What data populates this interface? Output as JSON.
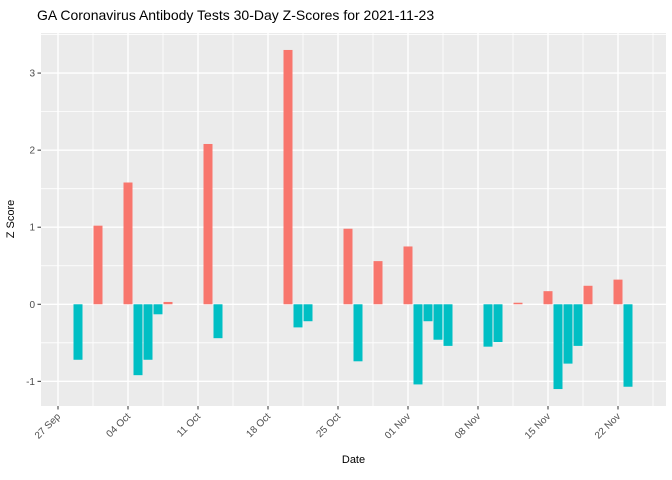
{
  "title": "GA Coronavirus Antibody Tests 30-Day Z-Scores for 2021-11-23",
  "chart_data": {
    "type": "bar",
    "title": "GA Coronavirus Antibody Tests 30-Day Z-Scores for 2021-11-23",
    "xlabel": "Date",
    "ylabel": "Z Score",
    "legend": "none",
    "grid": "on",
    "panel_bg": "#EBEBEB",
    "grid_color": "#FFFFFF",
    "tick_text_color": "#4D4D4D",
    "tick_mark_color": "#333333",
    "positive_color": "#F8766D",
    "negative_color": "#00BFC4",
    "x_epoch": "2021-09-27",
    "x_tick_days": [
      0,
      7,
      14,
      21,
      28,
      35,
      42,
      49,
      56
    ],
    "x_tick_labels": [
      "27 Sep",
      "04 Oct",
      "11 Oct",
      "18 Oct",
      "25 Oct",
      "01 Nov",
      "08 Nov",
      "15 Nov",
      "22 Nov"
    ],
    "x_minor_days": [
      3.5,
      10.5,
      17.5,
      24.5,
      31.5,
      38.5,
      45.5,
      52.5,
      59.5
    ],
    "y_ticks": [
      -1,
      0,
      1,
      2,
      3
    ],
    "y_tick_labels": [
      "-1",
      "0",
      "1",
      "2",
      "3"
    ],
    "y_minor": [
      -0.5,
      0.5,
      1.5,
      2.5,
      3.5
    ],
    "xlim_days": [
      -1.7,
      60.8
    ],
    "ylim": [
      -1.32,
      3.52
    ],
    "bar_width_days": 0.9,
    "bars": [
      {
        "date": "2021-09-29",
        "day": 2,
        "z": -0.72
      },
      {
        "date": "2021-10-01",
        "day": 4,
        "z": 1.02
      },
      {
        "date": "2021-10-04",
        "day": 7,
        "z": 1.58
      },
      {
        "date": "2021-10-05",
        "day": 8,
        "z": -0.92
      },
      {
        "date": "2021-10-06",
        "day": 9,
        "z": -0.72
      },
      {
        "date": "2021-10-07",
        "day": 10,
        "z": -0.13
      },
      {
        "date": "2021-10-08",
        "day": 11,
        "z": 0.03
      },
      {
        "date": "2021-10-12",
        "day": 15,
        "z": 2.08
      },
      {
        "date": "2021-10-13",
        "day": 16,
        "z": -0.44
      },
      {
        "date": "2021-10-20",
        "day": 23,
        "z": 3.3
      },
      {
        "date": "2021-10-21",
        "day": 24,
        "z": -0.3
      },
      {
        "date": "2021-10-22",
        "day": 25,
        "z": -0.22
      },
      {
        "date": "2021-10-26",
        "day": 29,
        "z": 0.98
      },
      {
        "date": "2021-10-27",
        "day": 30,
        "z": -0.74
      },
      {
        "date": "2021-10-29",
        "day": 32,
        "z": 0.56
      },
      {
        "date": "2021-11-01",
        "day": 35,
        "z": 0.75
      },
      {
        "date": "2021-11-02",
        "day": 36,
        "z": -1.04
      },
      {
        "date": "2021-11-03",
        "day": 37,
        "z": -0.22
      },
      {
        "date": "2021-11-04",
        "day": 38,
        "z": -0.46
      },
      {
        "date": "2021-11-05",
        "day": 39,
        "z": -0.54
      },
      {
        "date": "2021-11-09",
        "day": 43,
        "z": -0.55
      },
      {
        "date": "2021-11-10",
        "day": 44,
        "z": -0.49
      },
      {
        "date": "2021-11-12",
        "day": 46,
        "z": 0.02
      },
      {
        "date": "2021-11-15",
        "day": 49,
        "z": 0.17
      },
      {
        "date": "2021-11-16",
        "day": 50,
        "z": -1.1
      },
      {
        "date": "2021-11-17",
        "day": 51,
        "z": -0.77
      },
      {
        "date": "2021-11-18",
        "day": 52,
        "z": -0.54
      },
      {
        "date": "2021-11-19",
        "day": 53,
        "z": 0.24
      },
      {
        "date": "2021-11-22",
        "day": 56,
        "z": 0.32
      },
      {
        "date": "2021-11-23",
        "day": 57,
        "z": -1.07
      }
    ]
  }
}
